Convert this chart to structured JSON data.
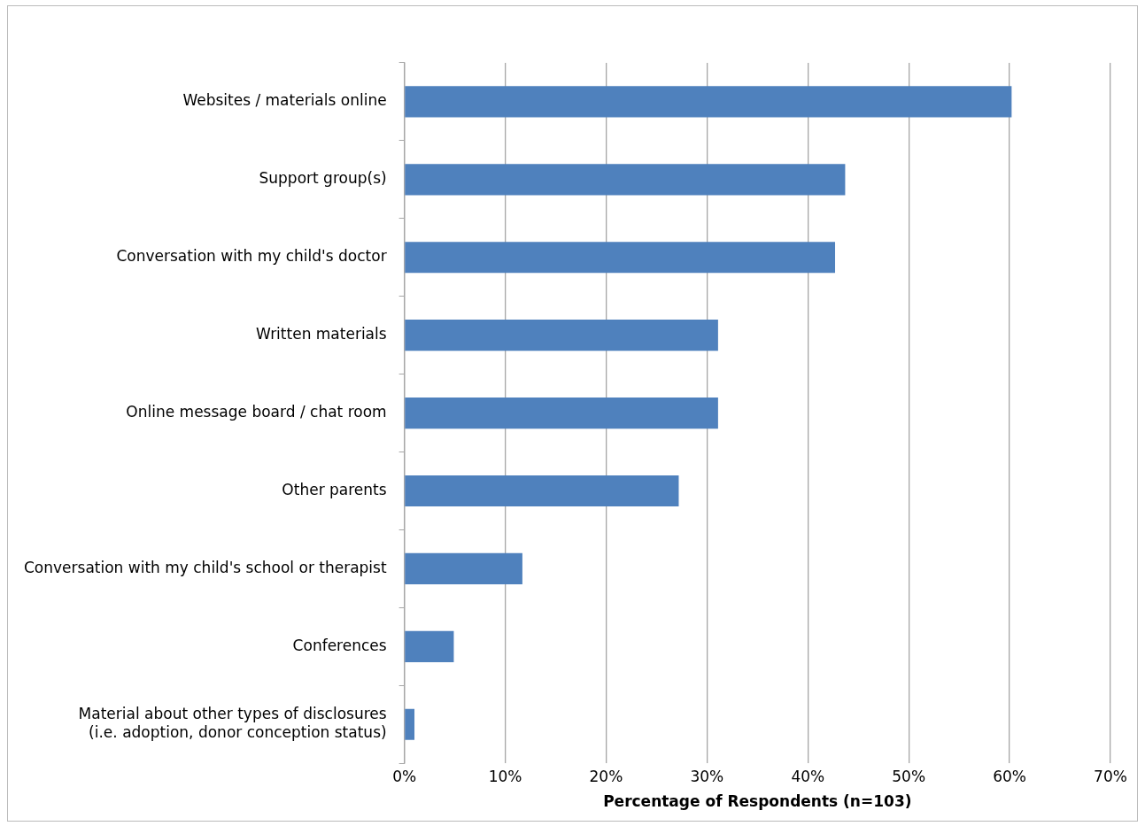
{
  "chart_data": {
    "type": "bar",
    "orientation": "horizontal",
    "xlabel": "Percentage of Respondents (n=103)",
    "categories": [
      "Websites / materials online",
      "Support group(s)",
      "Conversation with my child's doctor",
      "Written materials",
      "Online message board / chat room",
      "Other parents",
      "Conversation with my child's school or therapist",
      "Conferences",
      "Material about other types of disclosures\n(i.e. adoption, donor conception status)"
    ],
    "values": [
      60.2,
      43.7,
      42.7,
      31.1,
      31.1,
      27.2,
      11.7,
      4.9,
      1.0
    ],
    "color": "#4f81bd",
    "xlim": [
      0,
      70
    ],
    "xticks": [
      {
        "value": 0,
        "label": "0%"
      },
      {
        "value": 10,
        "label": "10%"
      },
      {
        "value": 20,
        "label": "20%"
      },
      {
        "value": 30,
        "label": "30%"
      },
      {
        "value": 40,
        "label": "40%"
      },
      {
        "value": 50,
        "label": "50%"
      },
      {
        "value": 60,
        "label": "60%"
      },
      {
        "value": 70,
        "label": "70%"
      }
    ],
    "grid": "x",
    "legend": false
  }
}
